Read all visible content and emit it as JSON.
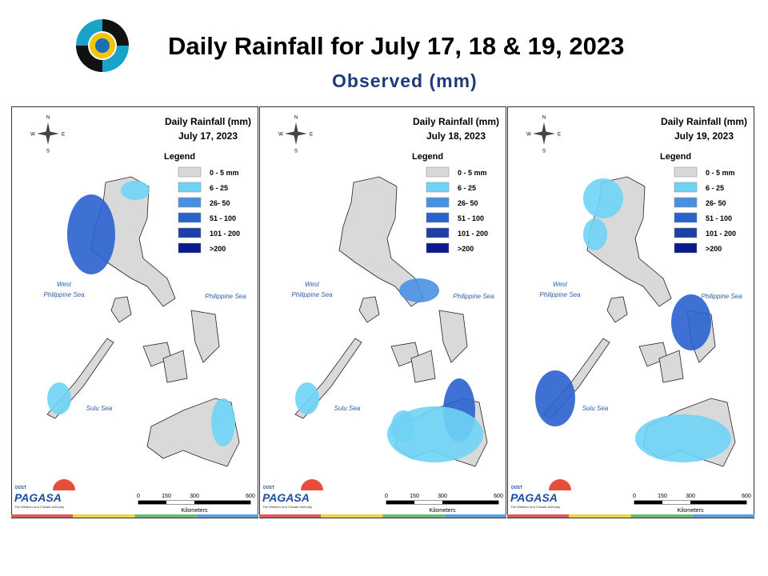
{
  "header": {
    "title": "Daily Rainfall for July 17, 18 & 19, 2023",
    "subtitle": "Observed (mm)"
  },
  "panels": [
    {
      "title": "Daily Rainfall (mm)",
      "date": "July 17, 2023"
    },
    {
      "title": "Daily Rainfall (mm)",
      "date": "July 18, 2023"
    },
    {
      "title": "Daily Rainfall (mm)",
      "date": "July 19, 2023"
    }
  ],
  "legend": {
    "title": "Legend",
    "items": [
      {
        "label": "0 - 5 mm",
        "color": "#d9d9d9"
      },
      {
        "label": "6 - 25",
        "color": "#6fd3f5"
      },
      {
        "label": "26- 50",
        "color": "#4a90e2"
      },
      {
        "label": "51 - 100",
        "color": "#2a62cf"
      },
      {
        "label": "101 - 200",
        "color": "#1f3fa8"
      },
      {
        "label": ">200",
        "color": "#0a1a8c"
      }
    ]
  },
  "sea_labels": {
    "west": [
      "West",
      "Philippine Sea"
    ],
    "east": "Philippine Sea",
    "south": "Sulu Sea"
  },
  "compass": {
    "n": "N",
    "e": "E",
    "s": "S",
    "w": "W"
  },
  "scale": {
    "ticks": [
      0,
      150,
      300,
      600
    ],
    "unit": "Kilometers"
  },
  "logo": {
    "agency": "DOST",
    "name": "PAGASA",
    "tagline": "The Weather and Climate Authority"
  }
}
